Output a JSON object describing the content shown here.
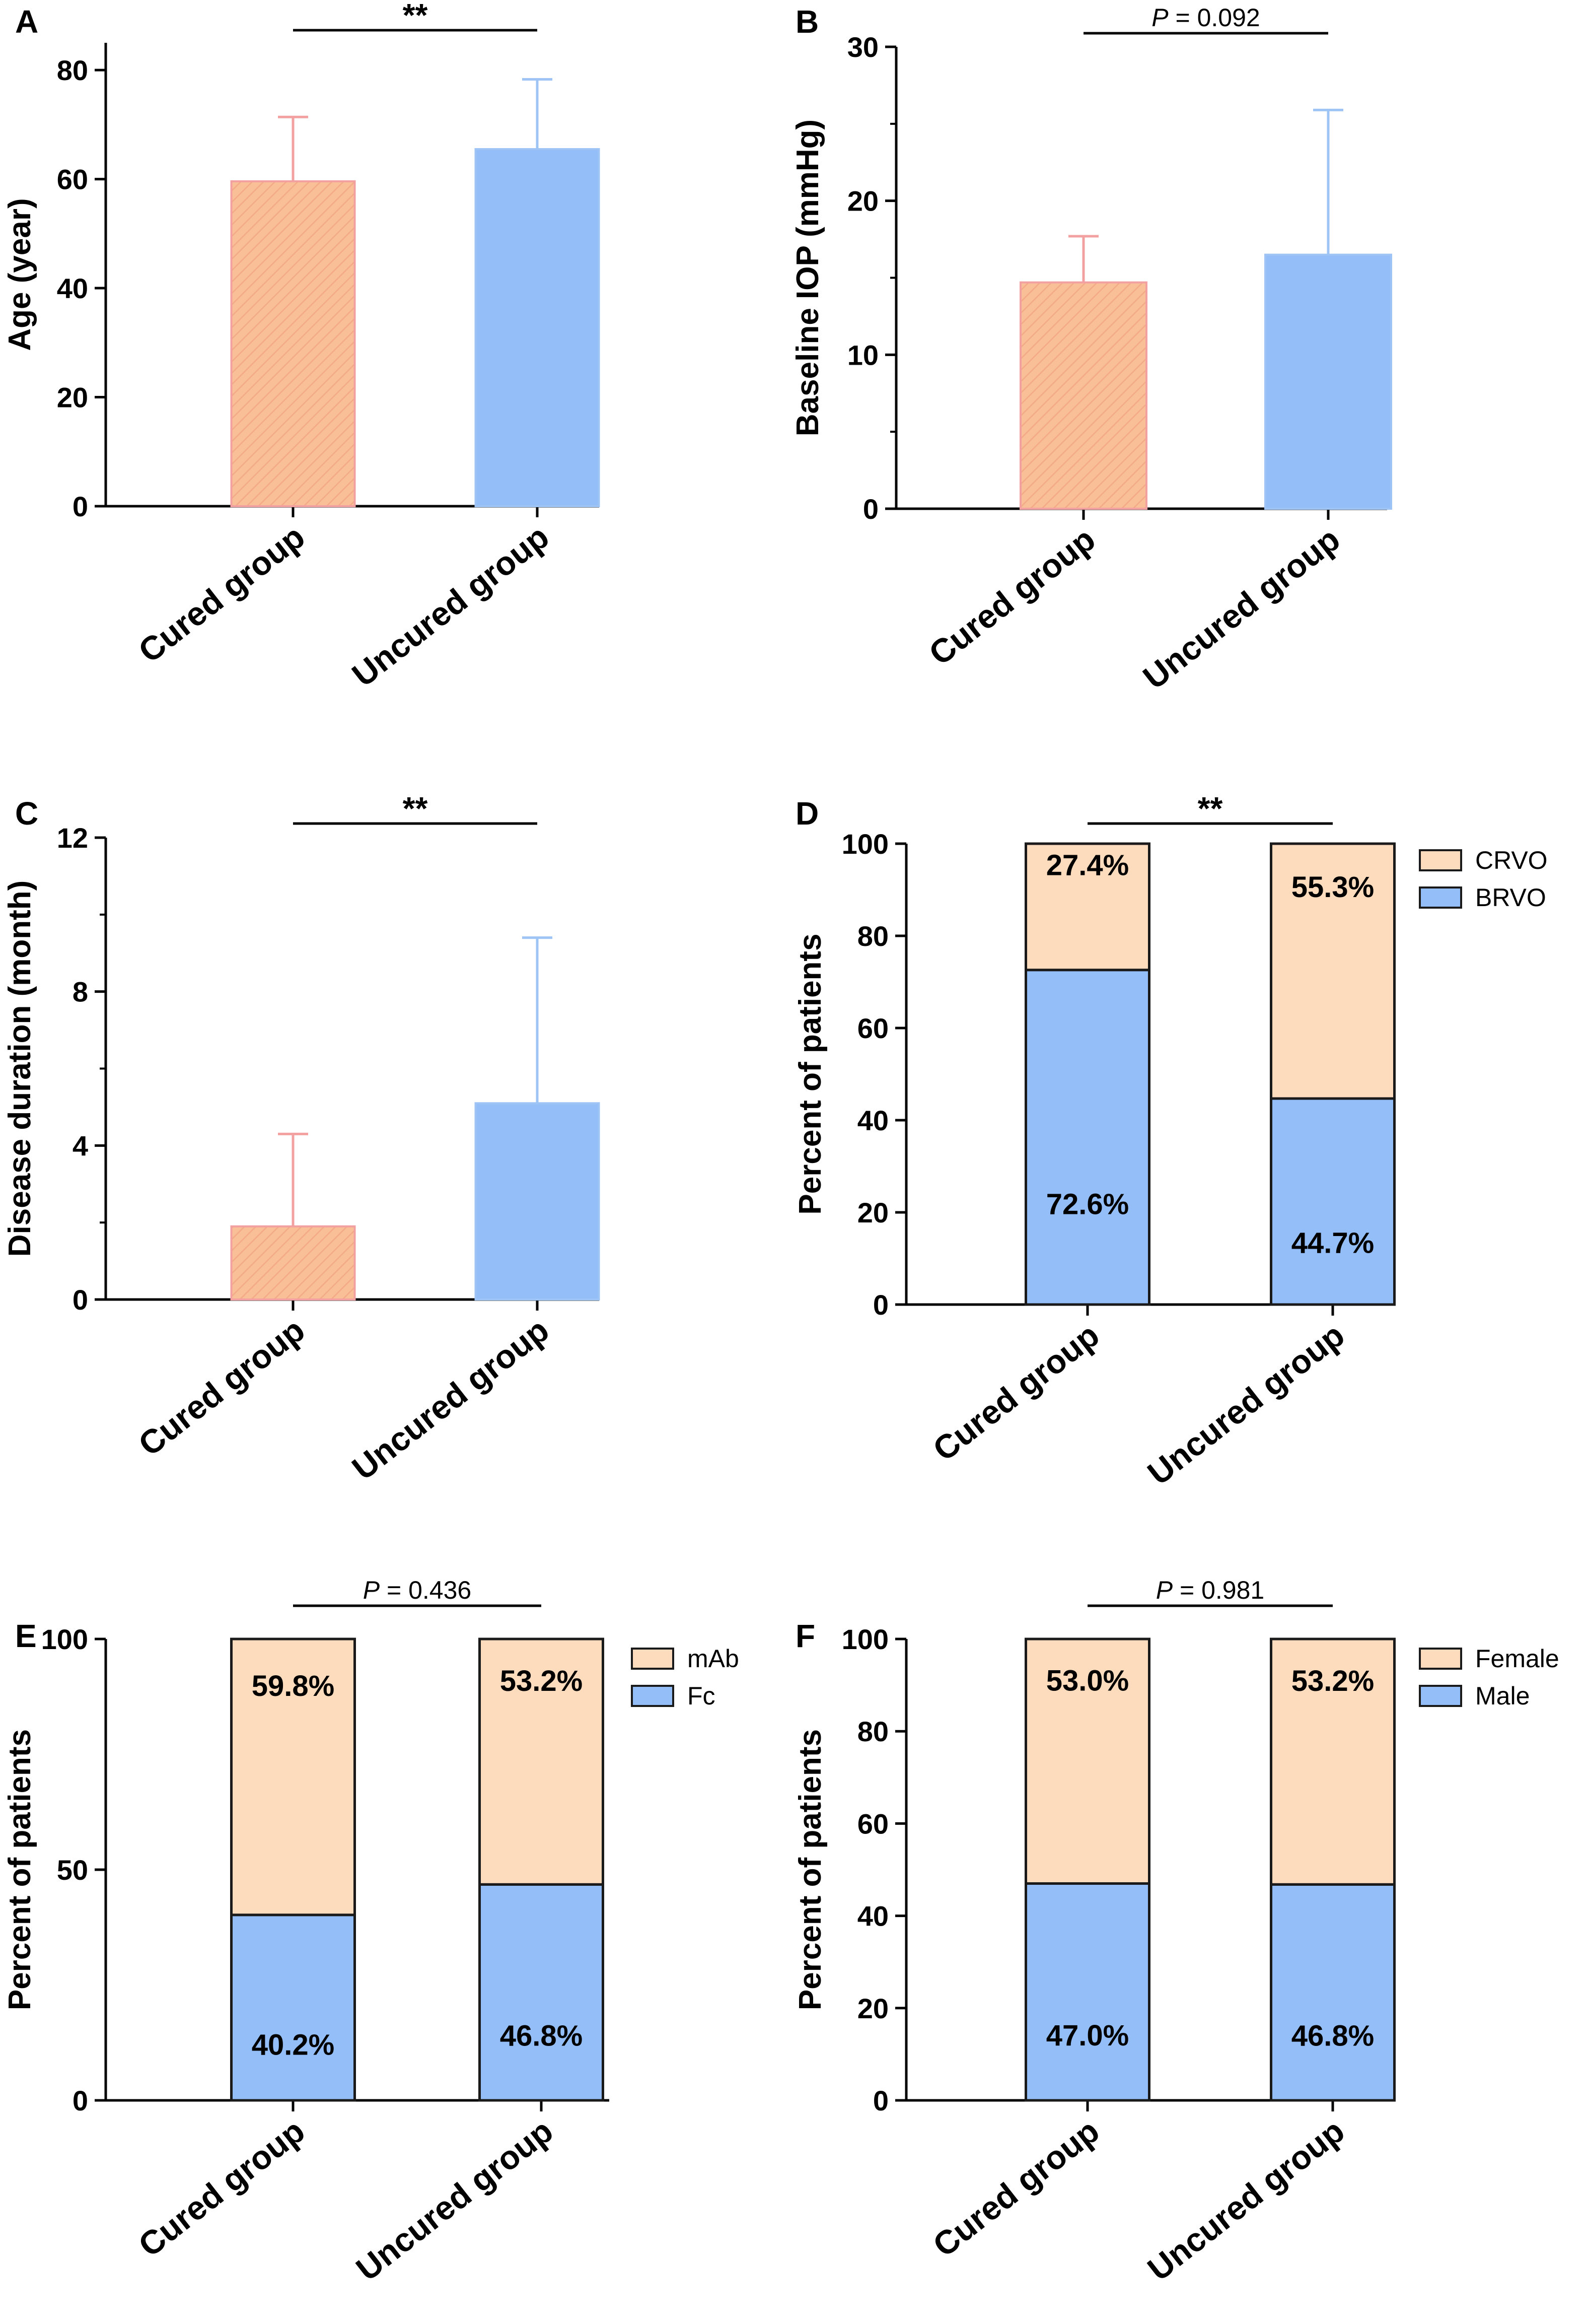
{
  "colors": {
    "cured_fill": "#f9bf96",
    "cured_edge": "#f2a0a0",
    "cured_hatch": "#f3aa86",
    "uncured_fill": "#93bef7",
    "uncured_edge": "#9dc4f5",
    "stack_top": "#fddcbd",
    "stack_bottom": "#93bef7",
    "axis": "#000000"
  },
  "chart_data": [
    {
      "id": "A",
      "letter": "A",
      "type": "bar",
      "ylabel": "Age (year)",
      "ylim": [
        0,
        85
      ],
      "yticks": [
        0,
        20,
        40,
        60,
        80
      ],
      "minor_ticks": [],
      "categories": [
        "Cured group",
        "Uncured group"
      ],
      "values": [
        59.6,
        65.5
      ],
      "errors": [
        11.8,
        12.8
      ],
      "comparison": {
        "text": "**"
      }
    },
    {
      "id": "B",
      "letter": "B",
      "type": "bar",
      "ylabel": "Baseline IOP (mmHg)",
      "ylim": [
        0,
        30
      ],
      "yticks": [
        0,
        10,
        20,
        30
      ],
      "minor_ticks": [
        5,
        15,
        25
      ],
      "categories": [
        "Cured group",
        "Uncured group"
      ],
      "values": [
        14.7,
        16.5
      ],
      "errors": [
        3.0,
        9.4
      ],
      "comparison": {
        "p_label": "P",
        "p_rest": " = 0.092"
      }
    },
    {
      "id": "C",
      "letter": "C",
      "type": "bar",
      "ylabel": "Disease duration (month)",
      "ylim": [
        0,
        12
      ],
      "yticks": [
        0,
        4,
        8,
        12
      ],
      "minor_ticks": [
        2,
        6,
        10
      ],
      "categories": [
        "Cured group",
        "Uncured group"
      ],
      "values": [
        1.9,
        5.1
      ],
      "errors": [
        2.4,
        4.3
      ],
      "comparison": {
        "text": "**"
      }
    },
    {
      "id": "D",
      "letter": "D",
      "type": "stacked_bar",
      "ylabel": "Percent of patients",
      "ylim": [
        0,
        100
      ],
      "yticks": [
        0,
        20,
        40,
        60,
        80,
        100
      ],
      "minor_ticks": [],
      "categories": [
        "Cured group",
        "Uncured group"
      ],
      "series": [
        {
          "name": "BRVO",
          "values": [
            72.6,
            44.7
          ],
          "labels": [
            "72.6%",
            "44.7%"
          ]
        },
        {
          "name": "CRVO",
          "values": [
            27.4,
            55.3
          ],
          "labels": [
            "27.4%",
            "55.3%"
          ]
        }
      ],
      "legend": [
        "CRVO",
        "BRVO"
      ],
      "comparison": {
        "text": "**"
      }
    },
    {
      "id": "E",
      "letter": "E",
      "type": "stacked_bar",
      "ylabel": "Percent of patients",
      "ylim": [
        0,
        100
      ],
      "yticks": [
        0,
        50,
        100
      ],
      "minor_ticks": [],
      "categories": [
        "Cured group",
        "Uncured group"
      ],
      "series": [
        {
          "name": "Fc",
          "values": [
            40.2,
            46.8
          ],
          "labels": [
            "40.2%",
            "46.8%"
          ]
        },
        {
          "name": "mAb",
          "values": [
            59.8,
            53.2
          ],
          "labels": [
            "59.8%",
            "53.2%"
          ]
        }
      ],
      "legend": [
        "mAb",
        "Fc"
      ],
      "comparison": {
        "p_label": "P",
        "p_rest": " = 0.436"
      }
    },
    {
      "id": "F",
      "letter": "F",
      "type": "stacked_bar",
      "ylabel": "Percent of patients",
      "ylim": [
        0,
        100
      ],
      "yticks": [
        0,
        20,
        40,
        60,
        80,
        100
      ],
      "minor_ticks": [],
      "categories": [
        "Cured group",
        "Uncured group"
      ],
      "series": [
        {
          "name": "Male",
          "values": [
            47.0,
            46.8
          ],
          "labels": [
            "47.0%",
            "46.8%"
          ]
        },
        {
          "name": "Female",
          "values": [
            53.0,
            53.2
          ],
          "labels": [
            "53.0%",
            "53.2%"
          ]
        }
      ],
      "legend": [
        "Female",
        "Male"
      ],
      "comparison": {
        "p_label": "P",
        "p_rest": " = 0.981"
      }
    }
  ]
}
